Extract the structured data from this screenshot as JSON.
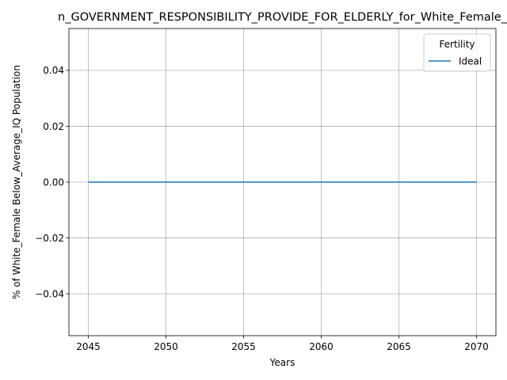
{
  "chart_data": {
    "type": "line",
    "title": "n_GOVERNMENT_RESPONSIBILITY_PROVIDE_FOR_ELDERLY_for_White_Female_",
    "xlabel": "Years",
    "ylabel": "% of White_Female Below_Average_IQ Population",
    "xlim": [
      2043.75,
      2071.25
    ],
    "ylim": [
      -0.055,
      0.055
    ],
    "x_ticks": [
      2045,
      2050,
      2055,
      2060,
      2065,
      2070
    ],
    "y_ticks": [
      -0.04,
      -0.02,
      0.0,
      0.02,
      0.04
    ],
    "x_tick_labels": [
      "2045",
      "2050",
      "2055",
      "2060",
      "2065",
      "2070"
    ],
    "y_tick_labels": [
      "−0.04",
      "−0.02",
      "0.00",
      "0.02",
      "0.04"
    ],
    "grid": true,
    "legend": {
      "title": "Fertility",
      "placement": "top-right"
    },
    "series": [
      {
        "name": "Ideal",
        "color": "#1f77b4",
        "x": [
          2045,
          2050,
          2055,
          2060,
          2065,
          2070
        ],
        "y": [
          0,
          0,
          0,
          0,
          0,
          0
        ]
      }
    ]
  }
}
